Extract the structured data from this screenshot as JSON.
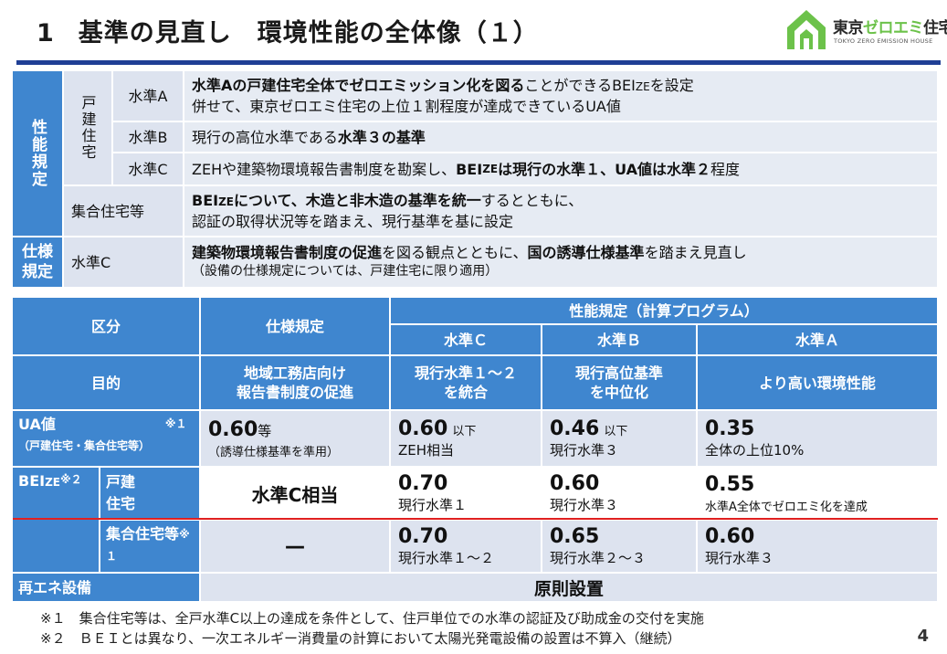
{
  "title": {
    "number": "1",
    "text": "基準の見直し　環境性能の全体像（１）"
  },
  "logo": {
    "brand_pre": "東京",
    "brand_hl": "ゼロエミ",
    "brand_post": "住宅",
    "sub": "TOKYO ZERO EMISSION HOUSE"
  },
  "upper": {
    "perf_label": "性能規定",
    "detached_label": "戸建住宅",
    "levelA": {
      "name": "水準A",
      "line1_bold": "水準Aの戸建住宅全体でゼロエミッション化を図る",
      "line1_rest_a": "ことができるBEI",
      "line1_sub": "ZE",
      "line1_rest_b": "を設定",
      "line2": "併せて、東京ゼロエミ住宅の上位１割程度が達成できているUA値"
    },
    "levelB": {
      "name": "水準B",
      "text_a": "現行の高位水準である",
      "text_bold": "水準３の基準"
    },
    "levelC": {
      "name": "水準C",
      "text_a": "ZEHや建築物環境報告書制度を勘案し、",
      "bold_a": "BEI",
      "bold_sub": "ZE",
      "bold_b": "は現行の水準１、UA値は水準２",
      "text_b": "程度"
    },
    "multi": {
      "name": "集合住宅等",
      "bold_a": "BEI",
      "bold_sub": "ZE",
      "bold_b": "について、木造と非木造の基準を統一",
      "text_a": "するとともに、",
      "line2": "認証の取得状況等を踏まえ、現行基準を基に設定"
    },
    "spec": {
      "label": "仕様規定",
      "name": "水準C",
      "bold_a": "建築物環境報告書制度の促進",
      "text_a": "を図る観点とともに、",
      "bold_b": "国の誘導仕様基準",
      "text_b": "を踏まえ見直し",
      "line2": "（設備の仕様規定については、戸建住宅に限り適用）"
    }
  },
  "lower": {
    "h_category": "区分",
    "h_spec": "仕様規定",
    "h_perf": "性能規定（計算プログラム）",
    "h_lvC": "水準Ｃ",
    "h_lvB": "水準Ｂ",
    "h_lvA": "水準Ａ",
    "purpose": {
      "label": "目的",
      "spec": "地域工務店向け\n報告書制度の促進",
      "lvC": "現行水準１～２\nを統合",
      "lvB": "現行高位基準\nを中位化",
      "lvA": "より高い環境性能"
    },
    "ua": {
      "label": "UA値",
      "note_mark": "※１",
      "sub": "（戸建住宅・集合住宅等）",
      "spec_val": "0.60",
      "spec_unit": "等",
      "spec_note": "（誘導仕様基準を準用）",
      "lvC_val": "0.60",
      "lvC_unit": "以下",
      "lvC_note": "ZEH相当",
      "lvB_val": "0.46",
      "lvB_unit": "以下",
      "lvB_note": "現行水準３",
      "lvA_val": "0.35",
      "lvA_note": "全体の上位10%"
    },
    "bei": {
      "label": "BEI",
      "label_sub": "ZE",
      "note_mark": "※２",
      "detached": "戸建住宅",
      "detached_spec": "水準C相当",
      "d_lvC_val": "0.70",
      "d_lvC_note": "現行水準１",
      "d_lvB_val": "0.60",
      "d_lvB_note": "現行水準３",
      "d_lvA_val": "0.55",
      "d_lvA_note": "水準A全体でゼロエミ化を達成",
      "multi": "集合住宅等",
      "multi_mark": "※１",
      "multi_spec": "－",
      "m_lvC_val": "0.70",
      "m_lvC_note": "現行水準１～２",
      "m_lvB_val": "0.65",
      "m_lvB_note": "現行水準２～３",
      "m_lvA_val": "0.60",
      "m_lvA_note": "現行水準３"
    },
    "renew": {
      "label": "再エネ設備",
      "value": "原則設置"
    }
  },
  "notes": [
    "※１　集合住宅等は、全戸水準C以上の達成を条件として、住戸単位での水準の認証及び助成金の交付を実施",
    "※２　ＢＥＩとは異なり、一次エネルギー消費量の計算において太陽光発電設備の設置は不算入（継続）"
  ],
  "page_number": "4",
  "colors": {
    "header_blue": "#3f86cf",
    "light_blue": "#dde3ef",
    "rule_navy": "#1f3f95",
    "red_line": "#e02020",
    "logo_green": "#6cc24a"
  }
}
